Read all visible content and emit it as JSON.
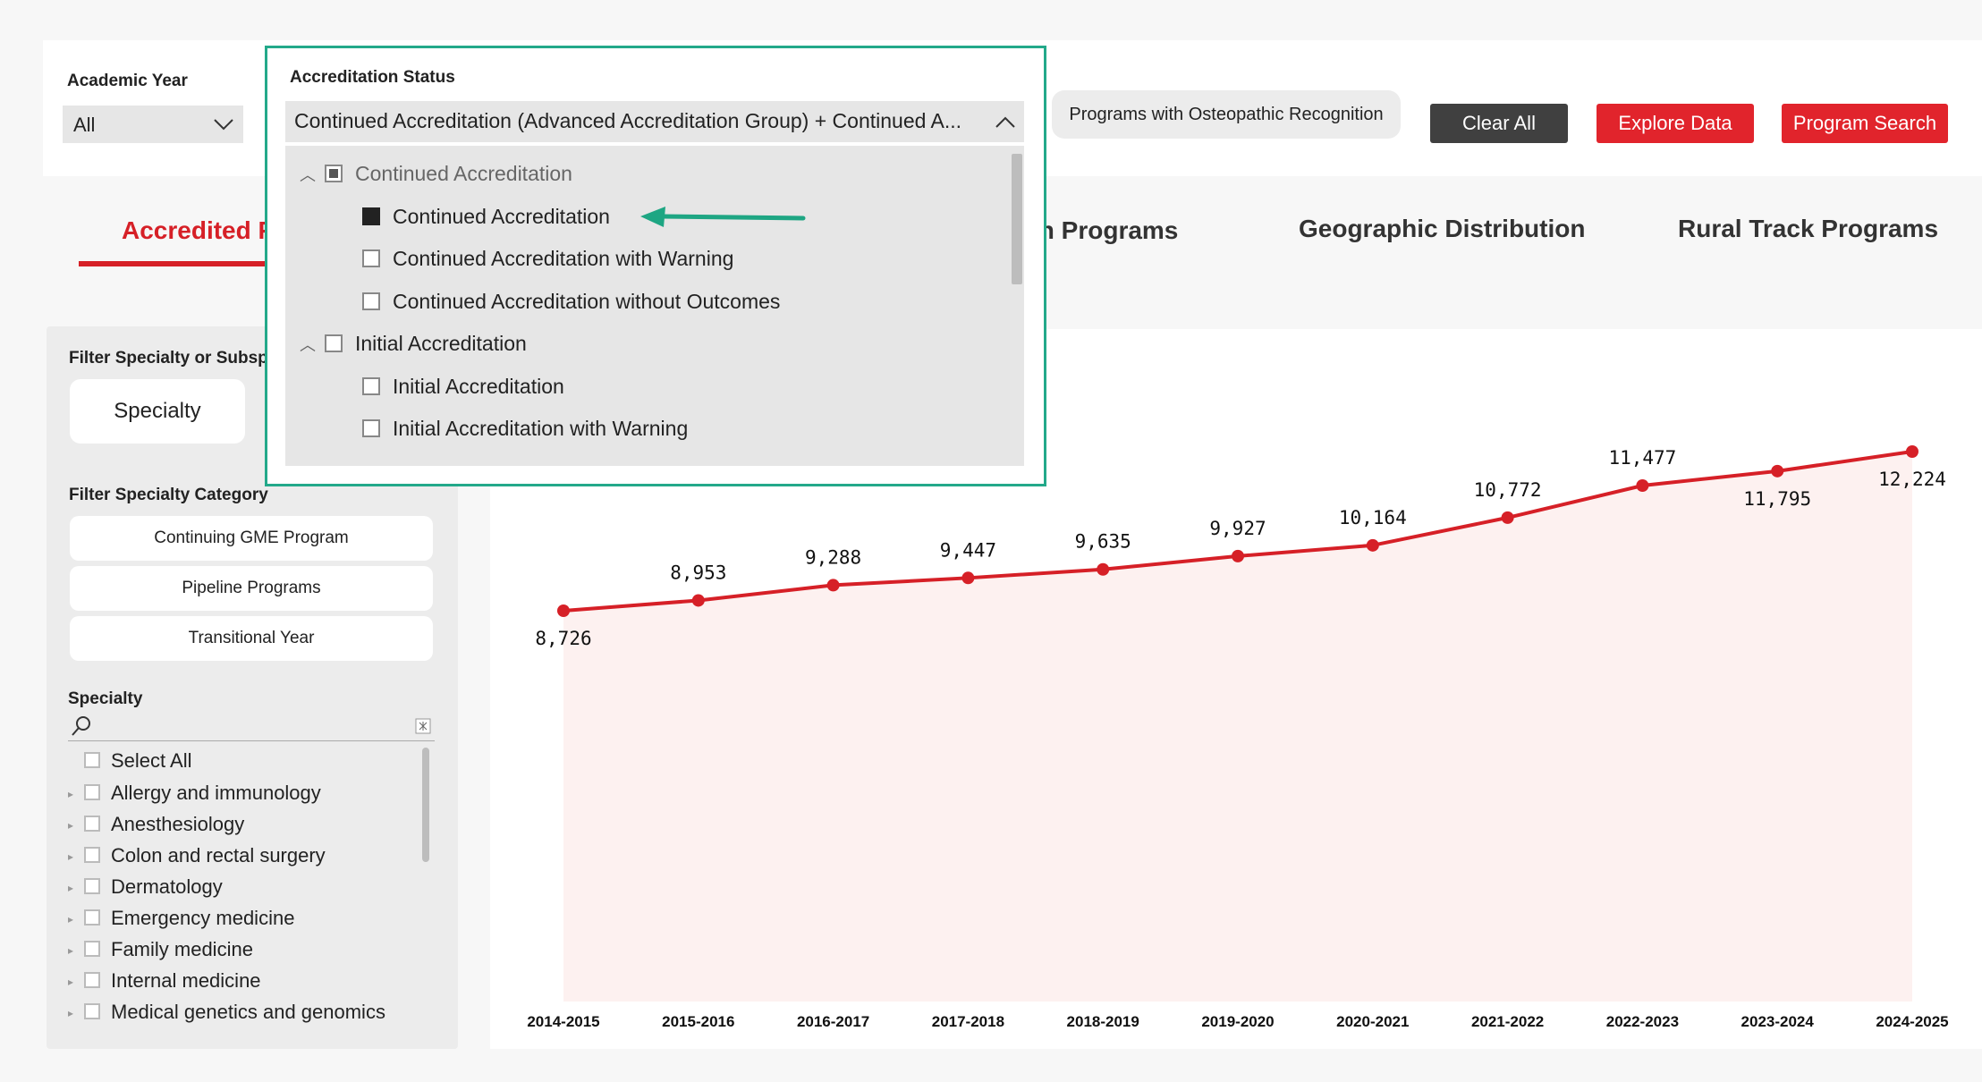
{
  "filters": {
    "academic_year": {
      "label": "Academic Year",
      "value": "All"
    },
    "accreditation_status": {
      "label": "Accreditation Status",
      "selected_text": "Continued Accreditation (Advanced Accreditation Group) + Continued A...",
      "options": [
        {
          "label": "Continued Accreditation",
          "level": 0,
          "state": "partial",
          "expanded": true
        },
        {
          "label": "Continued Accreditation",
          "level": 1,
          "state": "checked"
        },
        {
          "label": "Continued Accreditation with Warning",
          "level": 1,
          "state": "unchecked"
        },
        {
          "label": "Continued Accreditation without Outcomes",
          "level": 1,
          "state": "unchecked"
        },
        {
          "label": "Initial Accreditation",
          "level": 0,
          "state": "unchecked",
          "expanded": true
        },
        {
          "label": "Initial Accreditation",
          "level": 1,
          "state": "unchecked"
        },
        {
          "label": "Initial Accreditation with Warning",
          "level": 1,
          "state": "unchecked"
        }
      ]
    },
    "osteopathic_button": "Programs with Osteopathic Recognition"
  },
  "buttons": {
    "clear_all": "Clear All",
    "explore_data": "Explore Data",
    "program_search": "Program Search"
  },
  "tabs": [
    {
      "label": "Accredited Pr",
      "active": true
    },
    {
      "label": "wn Programs",
      "active": false
    },
    {
      "label": "Geographic Distribution",
      "active": false
    },
    {
      "label": "Rural Track Programs",
      "active": false
    }
  ],
  "left_panel": {
    "filter_specialty_title": "Filter Specialty or Subspe",
    "specialty_button": "Specialty",
    "category_title": "Filter Specialty Category",
    "categories": [
      "Continuing GME Program",
      "Pipeline Programs",
      "Transitional Year"
    ],
    "specialty_title": "Specialty",
    "specialty_items": [
      "Select All",
      "Allergy and immunology",
      "Anesthesiology",
      "Colon and rectal surgery",
      "Dermatology",
      "Emergency medicine",
      "Family medicine",
      "Internal medicine",
      "Medical genetics and genomics"
    ]
  },
  "chart_data": {
    "type": "area",
    "categories": [
      "2014-2015",
      "2015-2016",
      "2016-2017",
      "2017-2018",
      "2018-2019",
      "2019-2020",
      "2020-2021",
      "2021-2022",
      "2022-2023",
      "2023-2024",
      "2024-2025"
    ],
    "values": [
      8726,
      8953,
      9288,
      9447,
      9635,
      9927,
      10164,
      10772,
      11477,
      11795,
      12224
    ],
    "data_labels": [
      "8,726",
      "8,953",
      "9,288",
      "9,447",
      "9,635",
      "9,927",
      "10,164",
      "10,772",
      "11,477",
      "11,795",
      "12,224"
    ],
    "line_color": "#d62027",
    "fill_color": "#fdf1f0",
    "grid": false
  },
  "colors": {
    "accent_red": "#d62027",
    "popup_border": "#23a98a",
    "arrow": "#1ea683"
  }
}
